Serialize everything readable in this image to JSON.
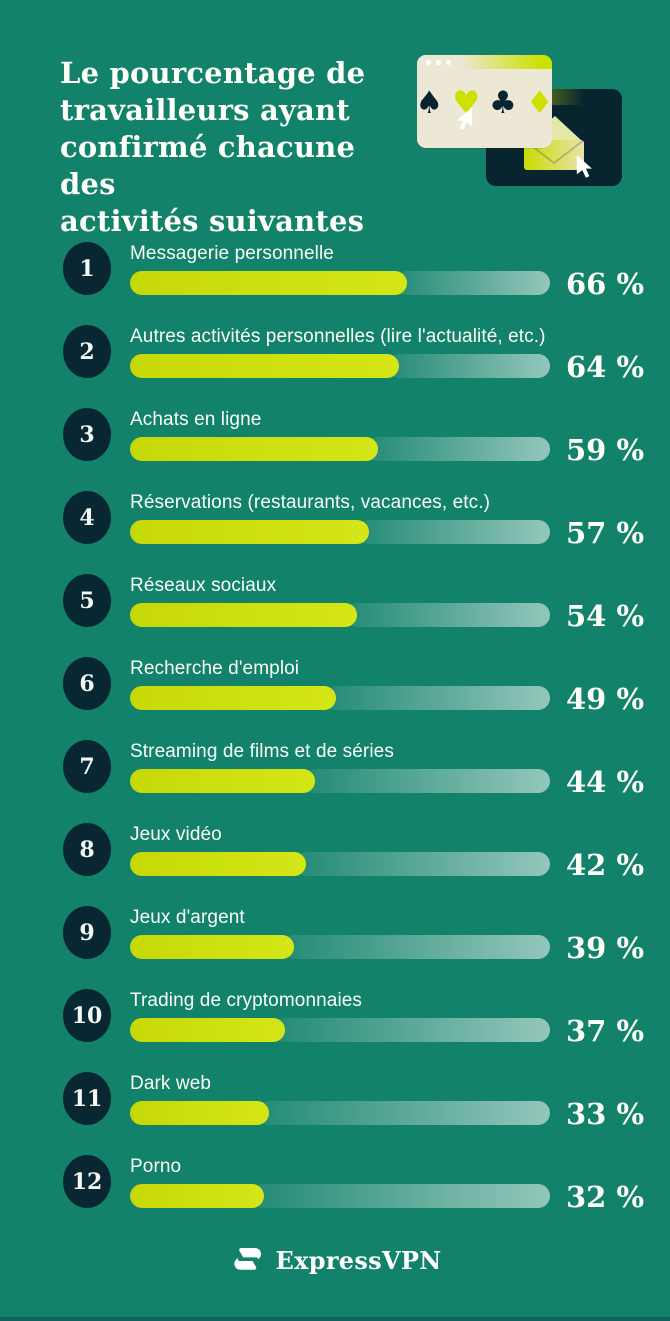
{
  "page": {
    "background_color": "#12826A",
    "accent_color": "#CDE000",
    "navy_color": "#07242F",
    "text_color": "#FFFFFF"
  },
  "header": {
    "title": "Le pourcentage de\ntravailleurs ayant\nconfirmé chacune des\nactivités suivantes"
  },
  "illustration": {
    "description": "browser window with card suits and cursor, overlapping dark window with envelope and cursor",
    "suits": [
      {
        "name": "spade",
        "glyph": "♠"
      },
      {
        "name": "heart",
        "glyph": "♥"
      },
      {
        "name": "club",
        "glyph": "♣"
      },
      {
        "name": "diamond",
        "glyph": "♦"
      }
    ]
  },
  "chart_data": {
    "type": "bar",
    "orientation": "horizontal",
    "title": "Le pourcentage de travailleurs ayant confirmé chacune des activités suivantes",
    "unit": "%",
    "xlim": [
      0,
      100
    ],
    "grid": false,
    "legend": false,
    "categories": [
      "Messagerie personnelle",
      "Autres activités personnelles (lire l'actualité, etc.)",
      "Achats en ligne",
      "Réservations (restaurants, vacances, etc.)",
      "Réseaux sociaux",
      "Recherche d'emploi",
      "Streaming de films et de séries",
      "Jeux vidéo",
      "Jeux d'argent",
      "Trading de cryptomonnaies",
      "Dark web",
      "Porno"
    ],
    "values": [
      66,
      64,
      59,
      57,
      54,
      49,
      44,
      42,
      39,
      37,
      33,
      32
    ],
    "value_labels": [
      "66 %",
      "64 %",
      "59 %",
      "57 %",
      "54 %",
      "49 %",
      "44 %",
      "42 %",
      "39 %",
      "37 %",
      "33 %",
      "32 %"
    ]
  },
  "rows": [
    {
      "rank": "1",
      "label": "Messagerie personnelle",
      "value": 66,
      "display": "66 %"
    },
    {
      "rank": "2",
      "label": "Autres activités personnelles (lire l'actualité, etc.)",
      "value": 64,
      "display": "64 %"
    },
    {
      "rank": "3",
      "label": "Achats en ligne",
      "value": 59,
      "display": "59 %"
    },
    {
      "rank": "4",
      "label": "Réservations (restaurants, vacances, etc.)",
      "value": 57,
      "display": "57 %"
    },
    {
      "rank": "5",
      "label": "Réseaux sociaux",
      "value": 54,
      "display": "54 %"
    },
    {
      "rank": "6",
      "label": "Recherche d'emploi",
      "value": 49,
      "display": "49 %"
    },
    {
      "rank": "7",
      "label": "Streaming de films et de séries",
      "value": 44,
      "display": "44 %"
    },
    {
      "rank": "8",
      "label": "Jeux vidéo",
      "value": 42,
      "display": "42 %"
    },
    {
      "rank": "9",
      "label": "Jeux d'argent",
      "value": 39,
      "display": "39 %"
    },
    {
      "rank": "10",
      "label": "Trading de cryptomonnaies",
      "value": 37,
      "display": "37 %"
    },
    {
      "rank": "11",
      "label": "Dark web",
      "value": 33,
      "display": "33 %"
    },
    {
      "rank": "12",
      "label": "Porno",
      "value": 32,
      "display": "32 %"
    }
  ],
  "footer": {
    "brand": "ExpressVPN"
  }
}
